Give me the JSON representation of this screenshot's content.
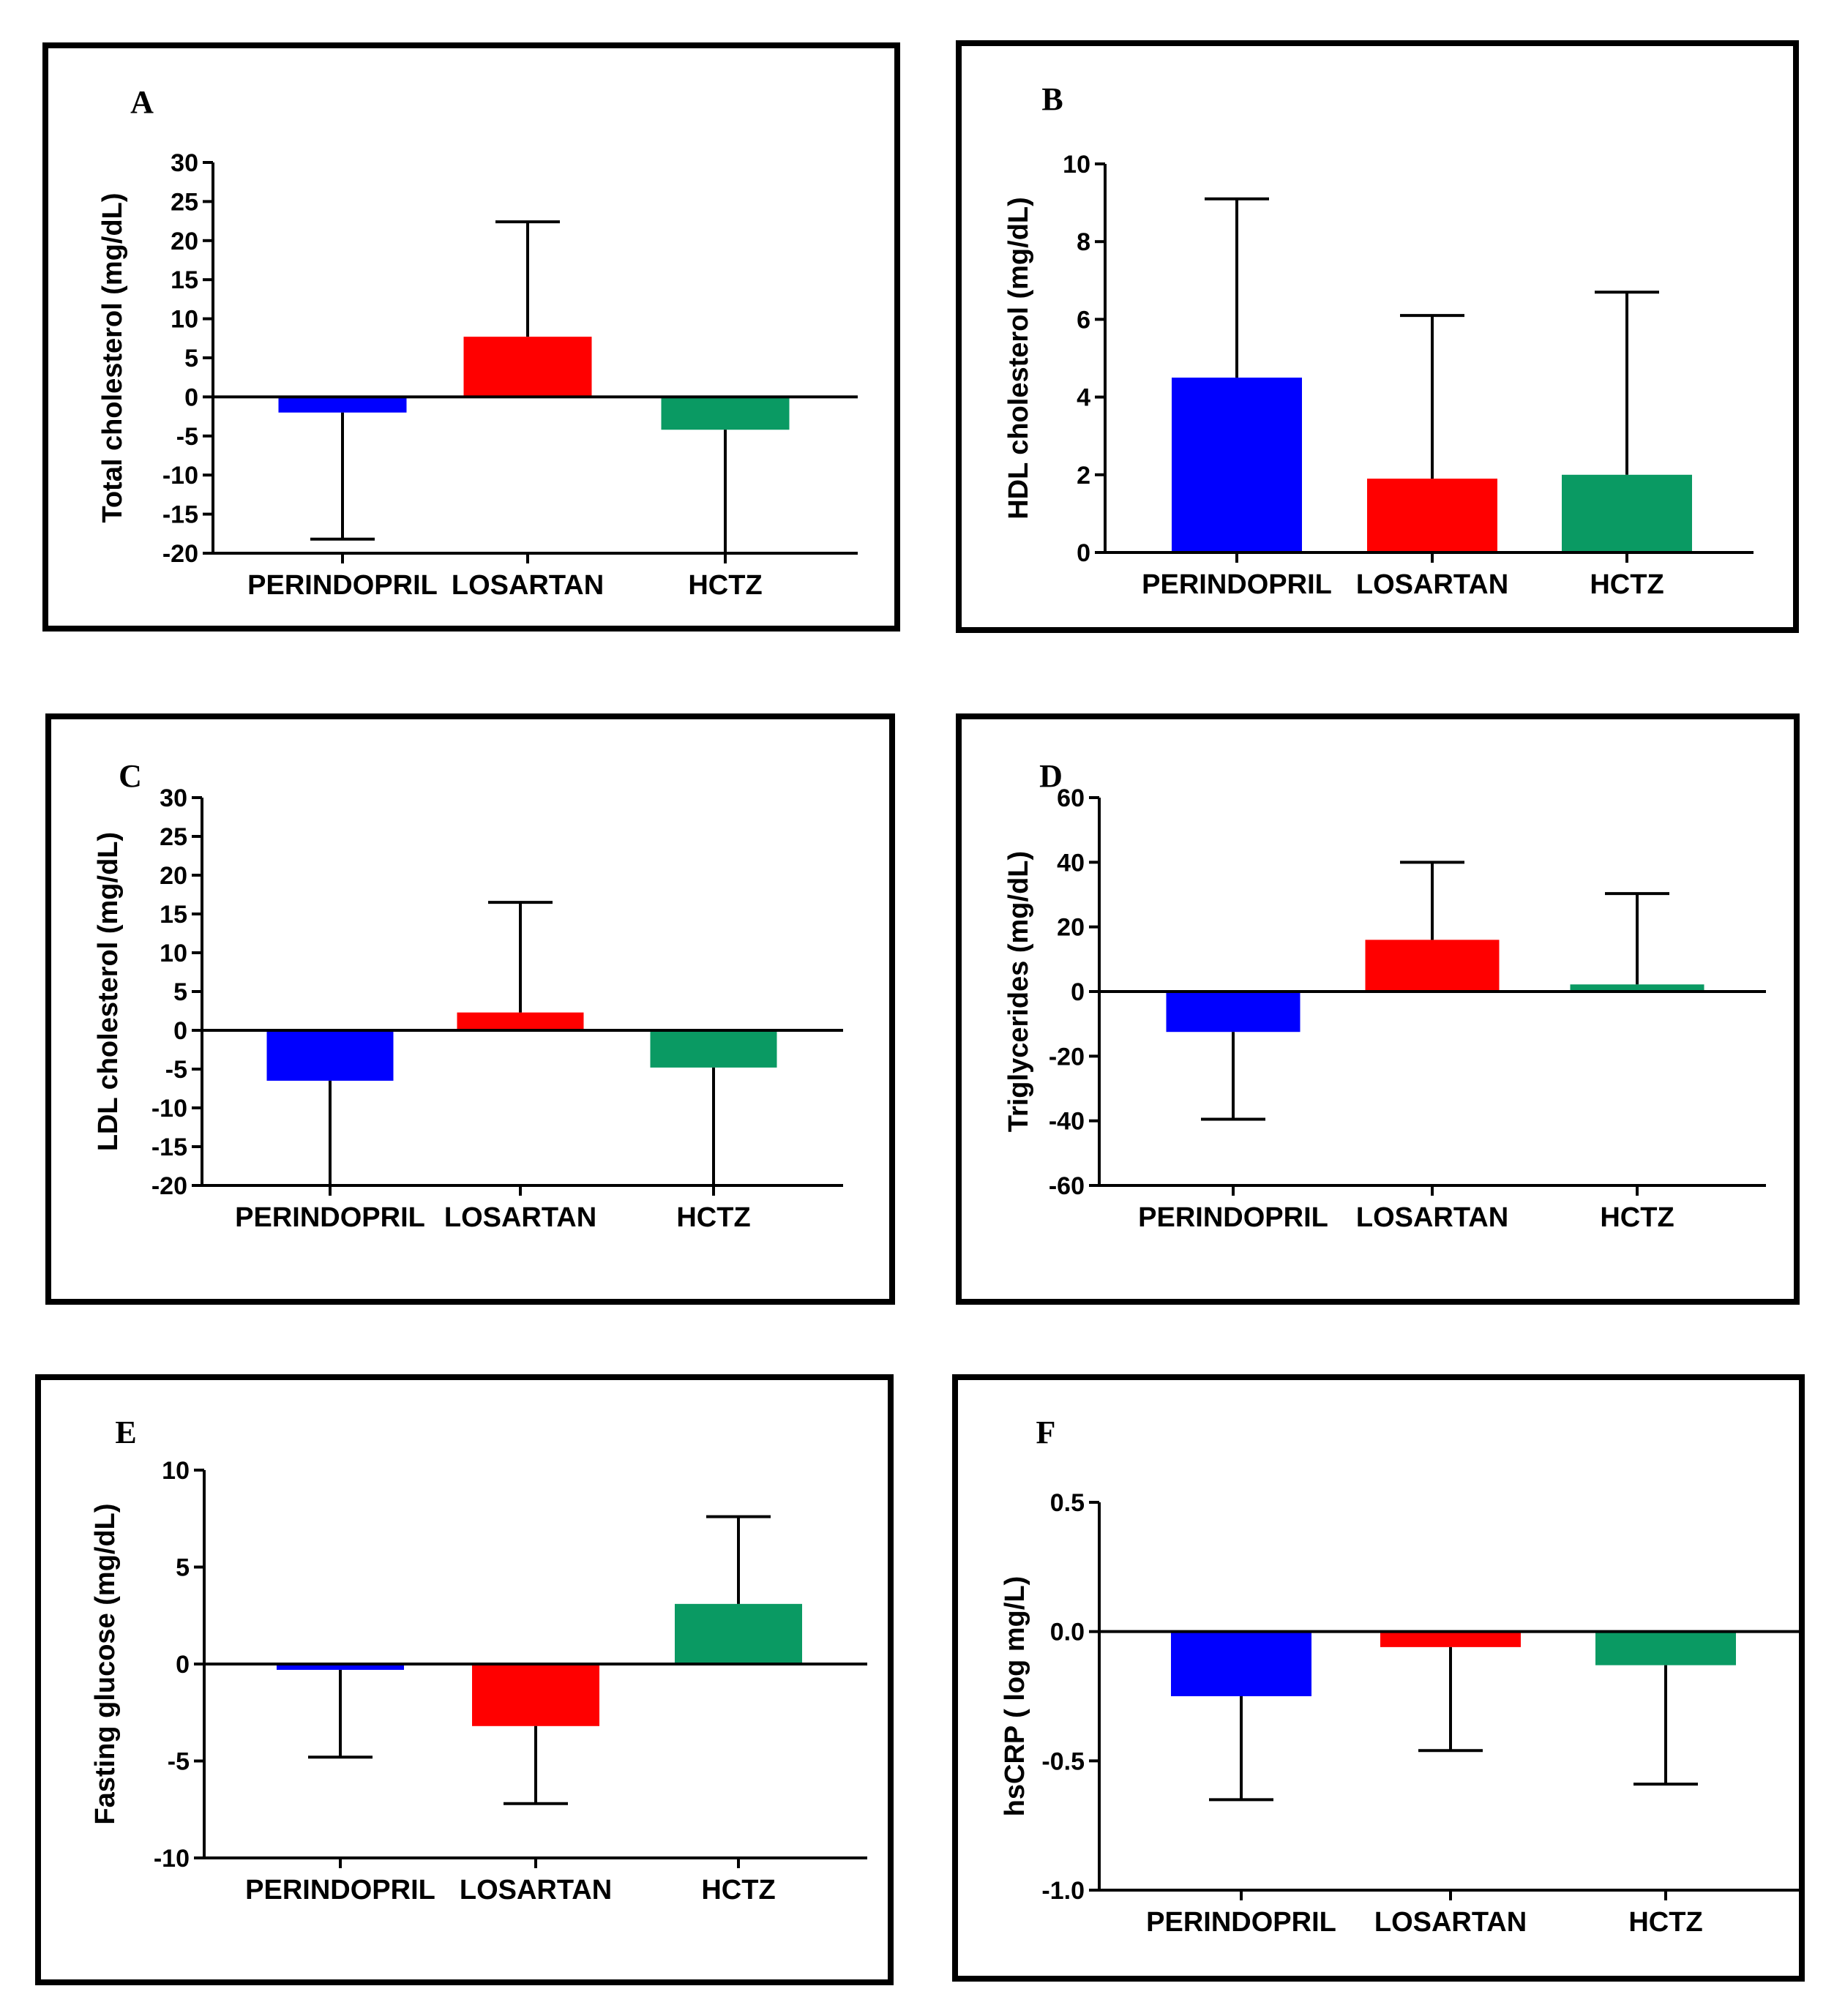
{
  "colors": {
    "PERINDOPRIL": "#0000ff",
    "LOSARTAN": "#ff0000",
    "HCTZ": "#0a9a63",
    "axis": "#000000"
  },
  "chart_data": [
    {
      "id": "A",
      "type": "bar",
      "letter": "A",
      "ylabel": "Total cholesterol (mg/dL)",
      "categories": [
        "PERINDOPRIL",
        "LOSARTAN",
        "HCTZ"
      ],
      "values": [
        -2,
        7.7,
        -4.2
      ],
      "error_ends": [
        -18.2,
        22.4,
        -20
      ],
      "ylim": [
        -20,
        30
      ],
      "yticks": [
        30,
        25,
        20,
        15,
        10,
        5,
        0,
        -5,
        -10,
        -15,
        -20
      ],
      "ytick_labels": [
        "30",
        "25",
        "20",
        "15",
        "10",
        "5",
        "0",
        "-5",
        "-10",
        "-15",
        "-20"
      ]
    },
    {
      "id": "B",
      "type": "bar",
      "letter": "B",
      "ylabel": "HDL cholesterol (mg/dL)",
      "categories": [
        "PERINDOPRIL",
        "LOSARTAN",
        "HCTZ"
      ],
      "values": [
        4.5,
        1.9,
        2.0
      ],
      "error_ends": [
        9.1,
        6.1,
        6.7
      ],
      "ylim": [
        0,
        10
      ],
      "yticks": [
        10,
        8,
        6,
        4,
        2,
        0
      ],
      "ytick_labels": [
        "10",
        "8",
        "6",
        "4",
        "2",
        "0"
      ]
    },
    {
      "id": "C",
      "type": "bar",
      "letter": "C",
      "ylabel": "LDL cholesterol (mg/dL)",
      "categories": [
        "PERINDOPRIL",
        "LOSARTAN",
        "HCTZ"
      ],
      "values": [
        -6.5,
        2.3,
        -4.8
      ],
      "error_ends": [
        -20,
        16.5,
        -20
      ],
      "ylim": [
        -20,
        30
      ],
      "yticks": [
        30,
        25,
        20,
        15,
        10,
        5,
        0,
        -5,
        -10,
        -15,
        -20
      ],
      "ytick_labels": [
        "30",
        "25",
        "20",
        "15",
        "10",
        "5",
        "0",
        "-5",
        "-10",
        "-15",
        "-20"
      ]
    },
    {
      "id": "D",
      "type": "bar",
      "letter": "D",
      "ylabel": "Triglycerides (mg/dL)",
      "categories": [
        "PERINDOPRIL",
        "LOSARTAN",
        "HCTZ"
      ],
      "values": [
        -12.5,
        16,
        2.2
      ],
      "error_ends": [
        -39.5,
        40,
        30.3
      ],
      "ylim": [
        -60,
        60
      ],
      "yticks": [
        60,
        40,
        20,
        0,
        -20,
        -40,
        -60
      ],
      "ytick_labels": [
        "60",
        "40",
        "20",
        "0",
        "-20",
        "-40",
        "-60"
      ]
    },
    {
      "id": "E",
      "type": "bar",
      "letter": "E",
      "ylabel": "Fasting glucose (mg/dL)",
      "categories": [
        "PERINDOPRIL",
        "LOSARTAN",
        "HCTZ"
      ],
      "values": [
        -0.3,
        -3.2,
        3.1
      ],
      "error_ends": [
        -4.8,
        -7.2,
        7.6
      ],
      "ylim": [
        -10,
        10
      ],
      "yticks": [
        10,
        5,
        0,
        -5,
        -10
      ],
      "ytick_labels": [
        "10",
        "5",
        "0",
        "-5",
        "-10"
      ]
    },
    {
      "id": "F",
      "type": "bar",
      "letter": "F",
      "ylabel": "hsCRP ( log mg/L)",
      "categories": [
        "PERINDOPRIL",
        "LOSARTAN",
        "HCTZ"
      ],
      "values": [
        -0.25,
        -0.06,
        -0.13
      ],
      "error_ends": [
        -0.65,
        -0.46,
        -0.59
      ],
      "ylim": [
        -1.0,
        0.5
      ],
      "yticks": [
        0.5,
        0.0,
        -0.5,
        -1.0
      ],
      "ytick_labels": [
        "0.5",
        "0.0",
        "-0.5",
        "-1.0"
      ]
    }
  ]
}
